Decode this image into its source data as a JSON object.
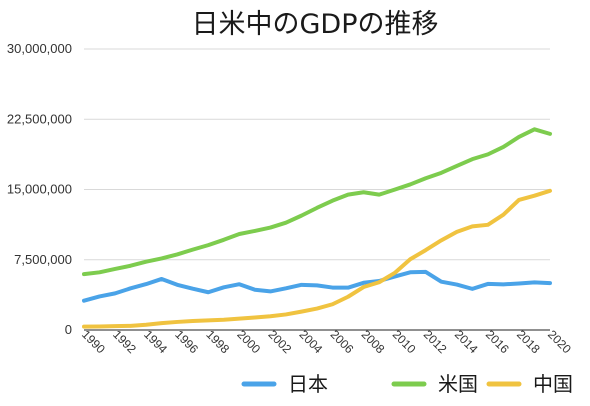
{
  "chart_data": {
    "type": "line",
    "title": "日米中のGDPの推移",
    "xlabel": "",
    "ylabel": "",
    "xlim": [
      1990,
      2020
    ],
    "ylim": [
      0,
      30000000
    ],
    "yticks": [
      0,
      7500000,
      15000000,
      22500000,
      30000000
    ],
    "ytick_labels": [
      "0",
      "7,500,000",
      "15,000,000",
      "22,500,000",
      "30,000,000"
    ],
    "xticks": [
      1990,
      1992,
      1994,
      1996,
      1998,
      2000,
      2002,
      2004,
      2006,
      2008,
      2010,
      2012,
      2014,
      2016,
      2018,
      2020
    ],
    "xtick_labels": [
      "1990",
      "1992",
      "1994",
      "1996",
      "1998",
      "2000",
      "2002",
      "2004",
      "2006",
      "2008",
      "2010",
      "2012",
      "2014",
      "2016",
      "2018",
      "2020"
    ],
    "grid": true,
    "legend_position": "bottom-right",
    "x": [
      1990,
      1991,
      1992,
      1993,
      1994,
      1995,
      1996,
      1997,
      1998,
      1999,
      2000,
      2001,
      2002,
      2003,
      2004,
      2005,
      2006,
      2007,
      2008,
      2009,
      2010,
      2011,
      2012,
      2013,
      2014,
      2015,
      2016,
      2017,
      2018,
      2019,
      2020
    ],
    "series": [
      {
        "name": "日本",
        "color": "#4aa3e8",
        "values": [
          3130000,
          3580000,
          3910000,
          4450000,
          4900000,
          5450000,
          4830000,
          4410000,
          4030000,
          4560000,
          4890000,
          4300000,
          4120000,
          4450000,
          4820000,
          4760000,
          4530000,
          4520000,
          5040000,
          5230000,
          5700000,
          6160000,
          6200000,
          5160000,
          4850000,
          4390000,
          4920000,
          4870000,
          4970000,
          5080000,
          5010000
        ]
      },
      {
        "name": "米国",
        "color": "#7dcc4e",
        "values": [
          5960000,
          6160000,
          6520000,
          6860000,
          7290000,
          7640000,
          8070000,
          8580000,
          9060000,
          9630000,
          10250000,
          10580000,
          10940000,
          11460000,
          12210000,
          13040000,
          13810000,
          14450000,
          14710000,
          14450000,
          14990000,
          15540000,
          16200000,
          16780000,
          17520000,
          18240000,
          18750000,
          19540000,
          20610000,
          21430000,
          20940000
        ]
      },
      {
        "name": "中国",
        "color": "#f0c340",
        "values": [
          360000,
          380000,
          420000,
          440000,
          560000,
          730000,
          860000,
          960000,
          1030000,
          1090000,
          1210000,
          1340000,
          1470000,
          1660000,
          1960000,
          2290000,
          2750000,
          3550000,
          4590000,
          5100000,
          6090000,
          7550000,
          8530000,
          9570000,
          10480000,
          11060000,
          11230000,
          12310000,
          13890000,
          14340000,
          14860000
        ]
      }
    ]
  }
}
